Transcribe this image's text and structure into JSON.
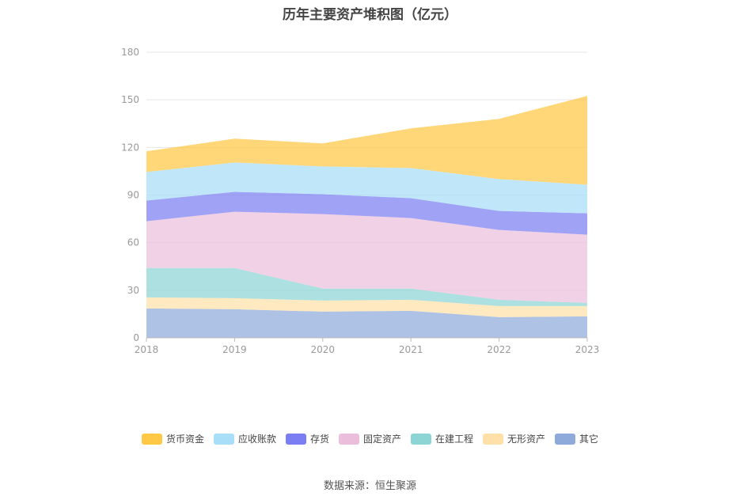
{
  "chart_data": {
    "type": "area",
    "stacked": true,
    "title": "历年主要资产堆积图（亿元）",
    "x": [
      "2018",
      "2019",
      "2020",
      "2021",
      "2022",
      "2023"
    ],
    "ylim": [
      0,
      180
    ],
    "yticks": [
      0,
      30,
      60,
      90,
      120,
      150,
      180
    ],
    "grid": true,
    "legend_position": "bottom",
    "series": [
      {
        "name": "其它",
        "color": "#8eaadb",
        "values": [
          18.5,
          18,
          16.5,
          17,
          13,
          13.5
        ]
      },
      {
        "name": "无形资产",
        "color": "#ffe0a8",
        "values": [
          7,
          7,
          7,
          7,
          7,
          6.5
        ]
      },
      {
        "name": "在建工程",
        "color": "#8dd4d4",
        "values": [
          18.5,
          19,
          7.5,
          7,
          4,
          2
        ]
      },
      {
        "name": "固定资产",
        "color": "#ebbfdc",
        "values": [
          29.5,
          35.5,
          47,
          44.5,
          44,
          43
        ]
      },
      {
        "name": "存货",
        "color": "#7b7ef2",
        "values": [
          13,
          12.5,
          12.5,
          12.5,
          12,
          13.5
        ]
      },
      {
        "name": "应收账款",
        "color": "#a8def7",
        "values": [
          18,
          18.5,
          17.5,
          19,
          20,
          18
        ]
      },
      {
        "name": "货币资金",
        "color": "#ffc845",
        "values": [
          13,
          15,
          14.5,
          25,
          38,
          56
        ]
      }
    ]
  },
  "legend_order": [
    "货币资金",
    "应收账款",
    "存货",
    "固定资产",
    "在建工程",
    "无形资产",
    "其它"
  ],
  "source_note": "数据来源：恒生聚源"
}
